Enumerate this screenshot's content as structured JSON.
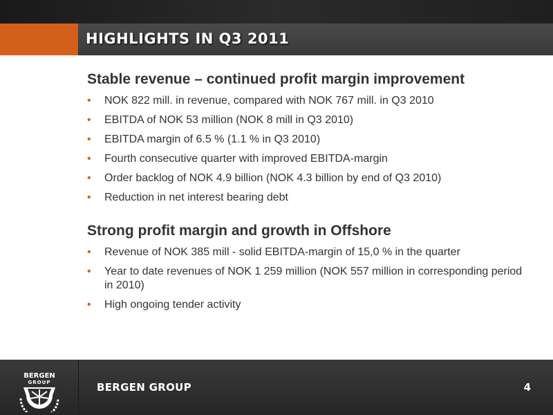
{
  "slide": {
    "title": "HIGHLIGHTS IN Q3 2011",
    "sections": [
      {
        "heading": "Stable revenue – continued profit margin improvement",
        "bullets": [
          "NOK 822 mill. in revenue, compared with NOK 767 mill. in Q3 2010",
          "EBITDA of NOK 53 million (NOK 8 mill in Q3 2010)",
          "EBITDA margin of 6.5 % (1.1 % in Q3 2010)",
          "Fourth consecutive quarter with improved EBITDA-margin",
          "Order backlog of NOK 4.9 billion (NOK 4.3 billion by end of Q3 2010)",
          "Reduction in net interest bearing debt"
        ]
      },
      {
        "heading": "Strong profit margin and growth in Offshore",
        "bullets": [
          "Revenue of NOK 385 mill - solid EBITDA-margin of 15,0 % in the quarter",
          "Year to date revenues of NOK 1 259 million (NOK 557 million in corresponding period in 2010)",
          "High ongoing tender activity"
        ]
      }
    ]
  },
  "footer": {
    "logo_text_top": "BERGEN",
    "logo_text_bottom": "GROUP",
    "brand": "BERGEN GROUP",
    "page_number": "4"
  },
  "colors": {
    "accent": "#d2601a",
    "text": "#333333"
  }
}
